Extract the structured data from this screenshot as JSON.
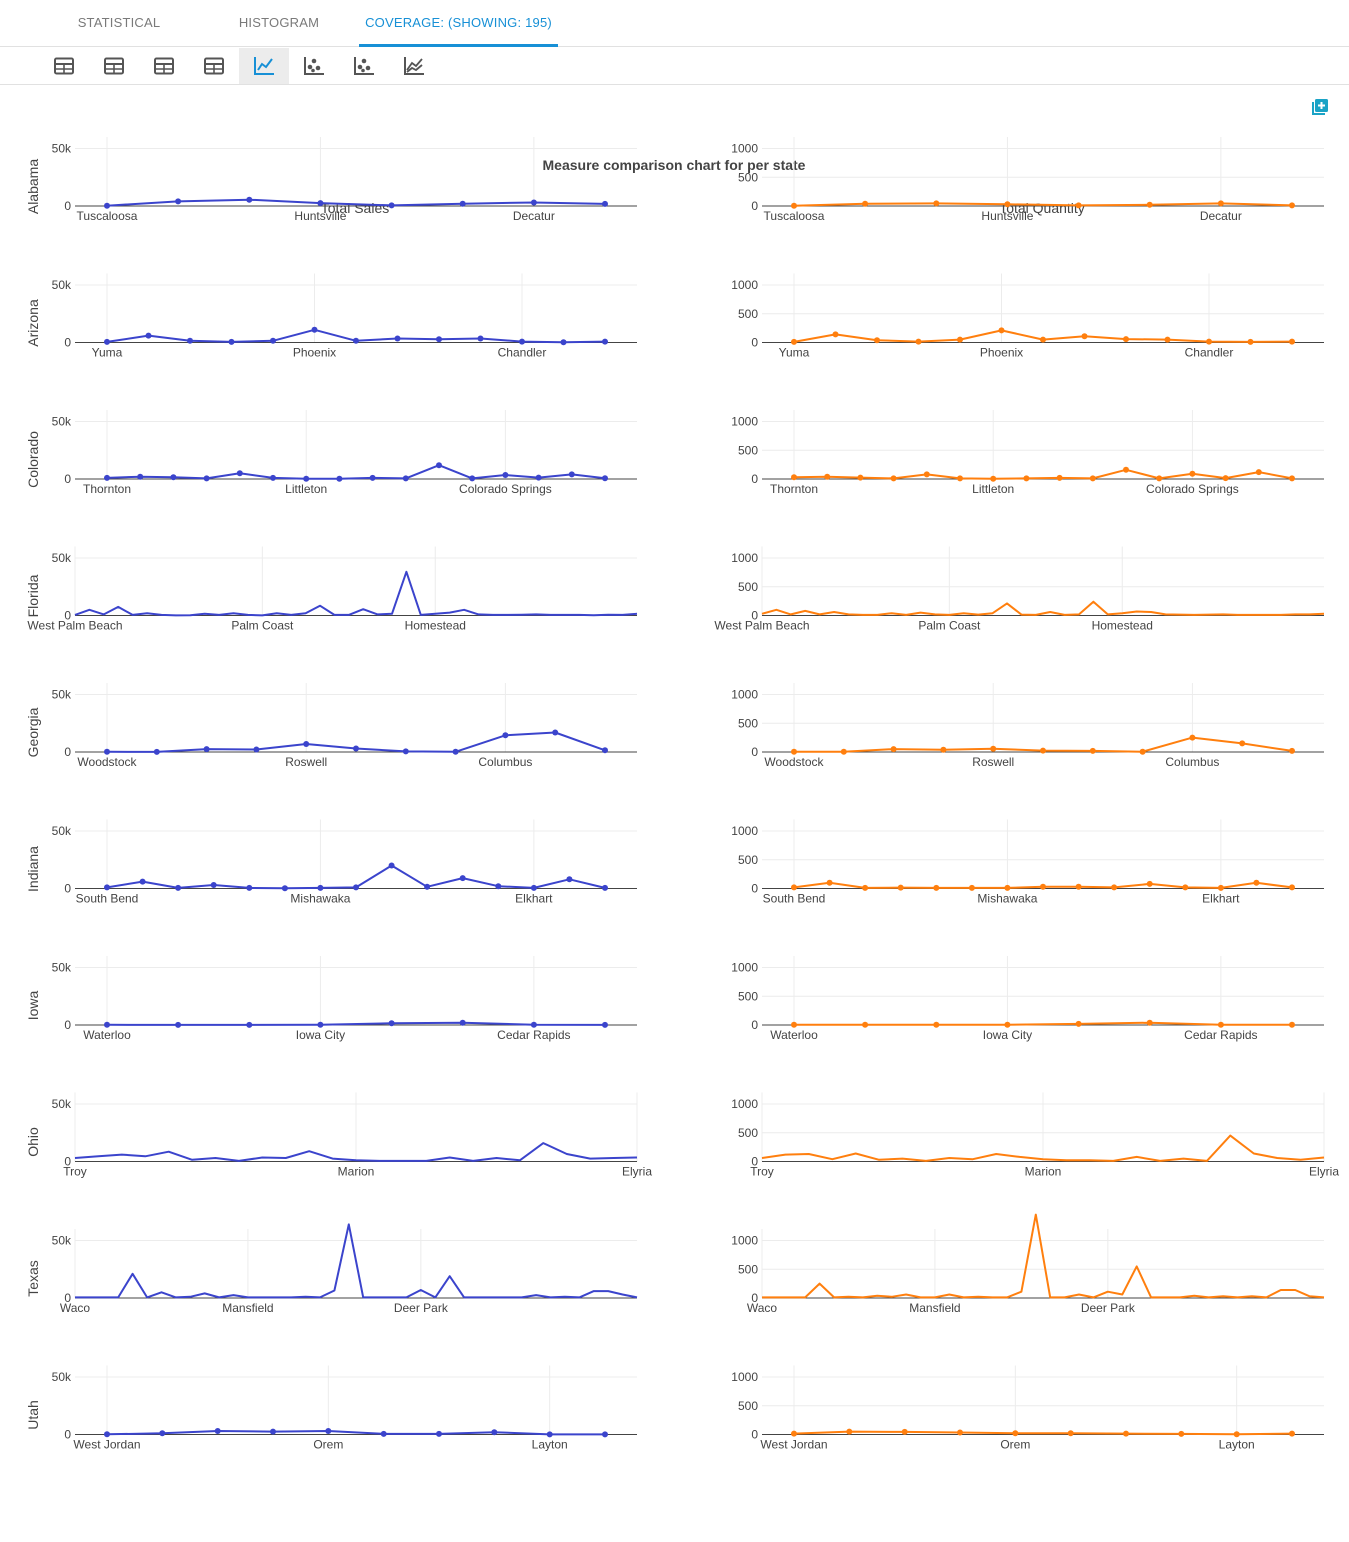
{
  "tabs": [
    {
      "label": "STATISTICAL",
      "active": false
    },
    {
      "label": "HISTOGRAM",
      "active": false
    },
    {
      "label": "COVERAGE: (SHOWING: 195)",
      "active": true
    }
  ],
  "toolbar": {
    "tools": [
      {
        "icon": "table-icon",
        "active": false
      },
      {
        "icon": "table-icon",
        "active": false
      },
      {
        "icon": "table-icon",
        "active": false
      },
      {
        "icon": "table-icon",
        "active": false
      },
      {
        "icon": "line-chart-icon",
        "active": true
      },
      {
        "icon": "scatter-chart-icon",
        "active": false
      },
      {
        "icon": "scatter-chart-icon",
        "active": false
      },
      {
        "icon": "multi-line-chart-icon",
        "active": false
      }
    ],
    "expand_icon": "add-panel-icon"
  },
  "colors": {
    "sales": "#3b44cc",
    "quantity": "#ff7f0e",
    "accent": "#1790d6"
  },
  "chart_data": {
    "type": "line",
    "title": "Measure comparison chart for per state",
    "columns": [
      {
        "name": "Total Sales",
        "ylim": [
          0,
          60000
        ],
        "ticks": [
          0,
          50000
        ],
        "tick_labels": [
          "0",
          "50k"
        ]
      },
      {
        "name": "Total Quantity",
        "ylim": [
          0,
          1200
        ],
        "ticks": [
          0,
          500,
          1000
        ],
        "tick_labels": [
          "0",
          "500",
          "1000"
        ]
      }
    ],
    "grid": true,
    "states": [
      {
        "state": "Alabama",
        "markers": true,
        "tick_labels": [
          "Tuscaloosa",
          "Huntsville",
          "Decatur"
        ],
        "tick_index": [
          0,
          3,
          6
        ],
        "sales": [
          300,
          4000,
          5500,
          2500,
          500,
          2000,
          3000,
          1800
        ],
        "quantity": [
          5,
          40,
          45,
          30,
          10,
          20,
          45,
          10
        ]
      },
      {
        "state": "Arizona",
        "markers": true,
        "tick_labels": [
          "Yuma",
          "Phoenix",
          "Chandler"
        ],
        "tick_index": [
          0,
          5,
          10
        ],
        "sales": [
          500,
          6000,
          1500,
          500,
          1500,
          11000,
          1500,
          3500,
          2800,
          3500,
          800,
          300,
          800
        ],
        "quantity": [
          10,
          140,
          40,
          15,
          50,
          210,
          50,
          110,
          60,
          50,
          15,
          10,
          15
        ]
      },
      {
        "state": "Colorado",
        "markers": true,
        "tick_labels": [
          "Thornton",
          "Littleton",
          "Colorado Springs"
        ],
        "tick_index": [
          0,
          6,
          12
        ],
        "sales": [
          1000,
          2000,
          1500,
          500,
          5000,
          1000,
          300,
          300,
          1000,
          500,
          12000,
          500,
          3500,
          1200,
          4000,
          700
        ],
        "quantity": [
          30,
          40,
          25,
          10,
          80,
          10,
          5,
          10,
          20,
          10,
          160,
          10,
          90,
          15,
          120,
          10
        ]
      },
      {
        "state": "Florida",
        "markers": false,
        "tick_labels": [
          "West Palm Beach",
          "Palm Coast",
          "Homestead"
        ],
        "tick_index": [
          0,
          13,
          25
        ],
        "sales": [
          500,
          5000,
          1000,
          7500,
          500,
          2000,
          500,
          100,
          200,
          1500,
          500,
          2000,
          500,
          100,
          2000,
          500,
          2000,
          8500,
          500,
          500,
          5500,
          1000,
          1500,
          38000,
          500,
          1500,
          2500,
          5000,
          1000,
          500,
          500,
          700,
          1000,
          500,
          500,
          500,
          300,
          700,
          500,
          1500
        ],
        "quantity": [
          30,
          100,
          20,
          80,
          20,
          60,
          20,
          10,
          10,
          40,
          10,
          50,
          20,
          10,
          40,
          15,
          40,
          210,
          15,
          10,
          60,
          10,
          20,
          240,
          20,
          40,
          70,
          60,
          20,
          15,
          10,
          15,
          20,
          10,
          10,
          10,
          10,
          20,
          20,
          30
        ]
      },
      {
        "state": "Georgia",
        "markers": true,
        "tick_labels": [
          "Woodstock",
          "Roswell",
          "Columbus"
        ],
        "tick_index": [
          0,
          4,
          8
        ],
        "sales": [
          200,
          100,
          2500,
          2200,
          7000,
          3000,
          500,
          200,
          14500,
          17000,
          1500
        ],
        "quantity": [
          5,
          5,
          50,
          40,
          55,
          25,
          20,
          5,
          250,
          150,
          20
        ]
      },
      {
        "state": "Indiana",
        "markers": true,
        "tick_labels": [
          "South Bend",
          "Mishawaka",
          "Elkhart"
        ],
        "tick_index": [
          0,
          6,
          12
        ],
        "sales": [
          1000,
          6000,
          500,
          3000,
          500,
          300,
          500,
          1000,
          20000,
          1500,
          9000,
          2000,
          500,
          8000,
          500
        ],
        "quantity": [
          20,
          100,
          10,
          15,
          10,
          10,
          10,
          30,
          30,
          20,
          80,
          20,
          10,
          100,
          20
        ]
      },
      {
        "state": "Iowa",
        "markers": true,
        "tick_labels": [
          "Waterloo",
          "Iowa City",
          "Cedar Rapids"
        ],
        "tick_index": [
          0,
          3,
          6
        ],
        "sales": [
          200,
          100,
          100,
          200,
          1500,
          2000,
          300,
          100
        ],
        "quantity": [
          5,
          5,
          5,
          5,
          20,
          40,
          5,
          5
        ]
      },
      {
        "state": "Ohio",
        "markers": false,
        "tick_labels": [
          "Troy",
          "Marion",
          "Elyria"
        ],
        "tick_index": [
          0,
          12,
          24
        ],
        "sales": [
          3000,
          4500,
          6000,
          4500,
          8500,
          1500,
          3000,
          500,
          3500,
          3000,
          9000,
          2500,
          1000,
          500,
          500,
          500,
          3500,
          500,
          3000,
          1000,
          16000,
          6500,
          2500,
          3000,
          3500
        ],
        "quantity": [
          60,
          120,
          130,
          40,
          140,
          30,
          50,
          10,
          60,
          40,
          130,
          80,
          40,
          20,
          20,
          10,
          80,
          10,
          50,
          10,
          450,
          140,
          60,
          30,
          70
        ]
      },
      {
        "state": "Texas",
        "markers": false,
        "tick_labels": [
          "Waco",
          "Mansfield",
          "Deer Park"
        ],
        "tick_index": [
          0,
          12,
          24
        ],
        "sales": [
          500,
          500,
          500,
          500,
          21000,
          500,
          5000,
          500,
          1000,
          4000,
          500,
          2500,
          500,
          500,
          500,
          500,
          1000,
          500,
          6500,
          64000,
          500,
          500,
          500,
          500,
          7000,
          500,
          19000,
          500,
          500,
          500,
          500,
          500,
          2500,
          500,
          1000,
          500,
          6000,
          6000,
          3000,
          500
        ],
        "quantity": [
          10,
          10,
          10,
          10,
          250,
          10,
          20,
          10,
          40,
          20,
          60,
          10,
          10,
          60,
          10,
          20,
          10,
          10,
          110,
          1450,
          10,
          10,
          60,
          10,
          110,
          60,
          550,
          10,
          10,
          10,
          40,
          10,
          30,
          10,
          30,
          10,
          140,
          140,
          30,
          10
        ]
      },
      {
        "state": "Utah",
        "markers": true,
        "tick_labels": [
          "West Jordan",
          "Orem",
          "Layton"
        ],
        "tick_index": [
          0,
          4,
          8
        ],
        "sales": [
          200,
          1000,
          3000,
          2500,
          3000,
          500,
          500,
          2000,
          100,
          100
        ],
        "quantity": [
          15,
          50,
          45,
          35,
          20,
          20,
          15,
          10,
          5,
          15
        ]
      }
    ]
  }
}
